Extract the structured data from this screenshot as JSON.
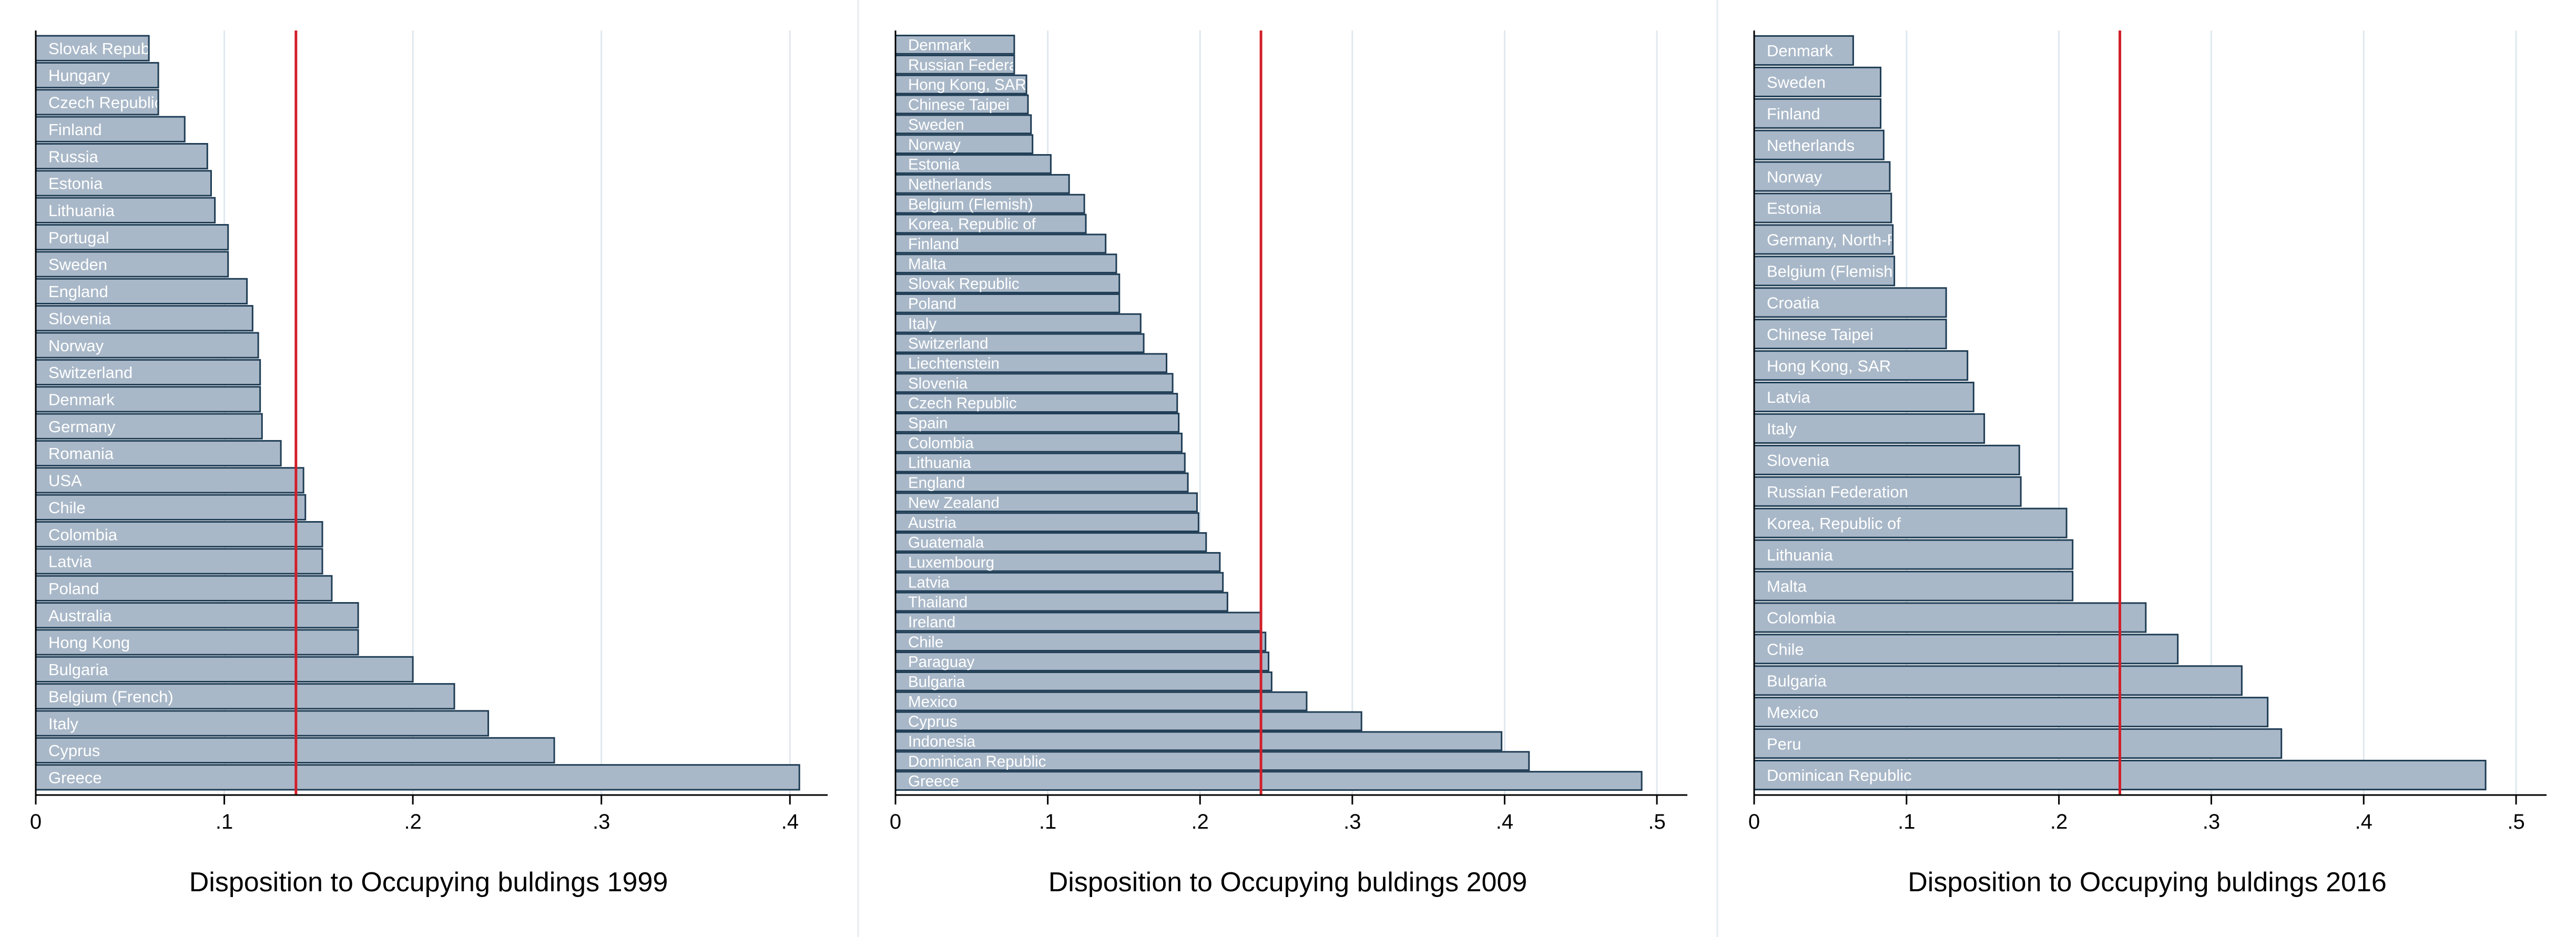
{
  "style": {
    "background": "#eaf0f3",
    "plot_background": "#ffffff",
    "bar_fill": "#a9b8c8",
    "bar_stroke": "#1f3d55",
    "reference_line": "#d11f2a",
    "grid": "#dfe8ee",
    "axis": "#000000"
  },
  "chart_data": [
    {
      "type": "bar",
      "orientation": "horizontal",
      "xlabel": "Disposition to Occupying buldings 1999",
      "xlim": [
        0,
        0.42
      ],
      "xticks": [
        0,
        0.1,
        0.2,
        0.3,
        0.4
      ],
      "xtick_labels": [
        "0",
        ".1",
        ".2",
        ".3",
        ".4"
      ],
      "reference_line": 0.138,
      "grid": true,
      "categories": [
        "Slovak Republic",
        "Hungary",
        "Czech Republic",
        "Finland",
        "Russia",
        "Estonia",
        "Lithuania",
        "Portugal",
        "Sweden",
        "England",
        "Slovenia",
        "Norway",
        "Switzerland",
        "Denmark",
        "Germany",
        "Romania",
        "USA",
        "Chile",
        "Colombia",
        "Latvia",
        "Poland",
        "Australia",
        "Hong Kong",
        "Bulgaria",
        "Belgium (French)",
        "Italy",
        "Cyprus",
        "Greece"
      ],
      "values": [
        0.06,
        0.065,
        0.065,
        0.079,
        0.091,
        0.093,
        0.095,
        0.102,
        0.102,
        0.112,
        0.115,
        0.118,
        0.119,
        0.119,
        0.12,
        0.13,
        0.142,
        0.143,
        0.152,
        0.152,
        0.157,
        0.171,
        0.171,
        0.2,
        0.222,
        0.24,
        0.275,
        0.405
      ]
    },
    {
      "type": "bar",
      "orientation": "horizontal",
      "xlabel": "Disposition to Occupying buldings 2009",
      "xlim": [
        0,
        0.52
      ],
      "xticks": [
        0,
        0.1,
        0.2,
        0.3,
        0.4,
        0.5
      ],
      "xtick_labels": [
        "0",
        ".1",
        ".2",
        ".3",
        ".4",
        ".5"
      ],
      "reference_line": 0.24,
      "grid": true,
      "categories": [
        "Denmark",
        "Russian Federation",
        "Hong Kong, SAR",
        "Chinese Taipei",
        "Sweden",
        "Norway",
        "Estonia",
        "Netherlands",
        "Belgium (Flemish)",
        "Korea, Republic of",
        "Finland",
        "Malta",
        "Slovak Republic",
        "Poland",
        "Italy",
        "Switzerland",
        "Liechtenstein",
        "Slovenia",
        "Czech Republic",
        "Spain",
        "Colombia",
        "Lithuania",
        "England",
        "New Zealand",
        "Austria",
        "Guatemala",
        "Luxembourg",
        "Latvia",
        "Thailand",
        "Ireland",
        "Chile",
        "Paraguay",
        "Bulgaria",
        "Mexico",
        "Cyprus",
        "Indonesia",
        "Dominican Republic",
        "Greece"
      ],
      "values": [
        0.078,
        0.078,
        0.086,
        0.087,
        0.089,
        0.09,
        0.102,
        0.114,
        0.124,
        0.125,
        0.138,
        0.145,
        0.147,
        0.147,
        0.161,
        0.163,
        0.178,
        0.182,
        0.185,
        0.186,
        0.188,
        0.19,
        0.192,
        0.198,
        0.199,
        0.204,
        0.213,
        0.215,
        0.218,
        0.24,
        0.243,
        0.245,
        0.247,
        0.27,
        0.306,
        0.398,
        0.416,
        0.49
      ]
    },
    {
      "type": "bar",
      "orientation": "horizontal",
      "xlabel": "Disposition to Occupying buldings 2016",
      "xlim": [
        0,
        0.52
      ],
      "xticks": [
        0,
        0.1,
        0.2,
        0.3,
        0.4,
        0.5
      ],
      "xtick_labels": [
        "0",
        ".1",
        ".2",
        ".3",
        ".4",
        ".5"
      ],
      "reference_line": 0.24,
      "grid": true,
      "categories": [
        "Denmark",
        "Sweden",
        "Finland",
        "Netherlands",
        "Norway",
        "Estonia",
        "Germany, North-Rhine-Westphalia",
        "Belgium (Flemish)",
        "Croatia",
        "Chinese Taipei",
        "Hong Kong, SAR",
        "Latvia",
        "Italy",
        "Slovenia",
        "Russian Federation",
        "Korea, Republic of",
        "Lithuania",
        "Malta",
        "Colombia",
        "Chile",
        "Bulgaria",
        "Mexico",
        "Peru",
        "Dominican Republic"
      ],
      "values": [
        0.065,
        0.083,
        0.083,
        0.085,
        0.089,
        0.09,
        0.091,
        0.092,
        0.126,
        0.126,
        0.14,
        0.144,
        0.151,
        0.174,
        0.175,
        0.205,
        0.209,
        0.209,
        0.257,
        0.278,
        0.32,
        0.337,
        0.346,
        0.48
      ]
    }
  ]
}
